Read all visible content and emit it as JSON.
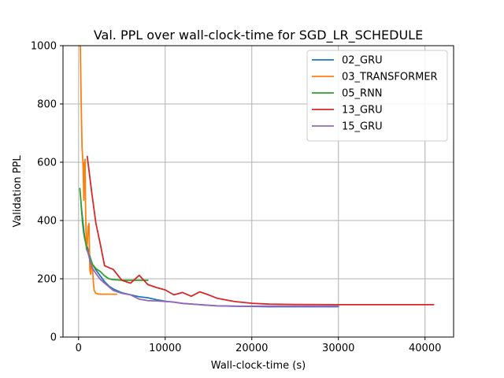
{
  "chart_data": {
    "type": "line",
    "title": "Val. PPL over wall-clock-time for SGD_LR_SCHEDULE",
    "xlabel": "Wall-clock-time (s)",
    "ylabel": "Validation PPL",
    "xlim": [
      -1800,
      43300
    ],
    "ylim": [
      0,
      1000
    ],
    "xticks": [
      0,
      10000,
      20000,
      30000,
      40000
    ],
    "xtick_labels": [
      "0",
      "10000",
      "20000",
      "30000",
      "40000"
    ],
    "yticks": [
      0,
      200,
      400,
      600,
      800,
      1000
    ],
    "ytick_labels": [
      "0",
      "200",
      "400",
      "600",
      "800",
      "1000"
    ],
    "grid": true,
    "legend_position": "top-right",
    "series": [
      {
        "name": "02_GRU",
        "color": "#1f77b4",
        "x": [
          300,
          700,
          1100,
          1500,
          2000,
          2500,
          3000,
          3500,
          4000,
          5000,
          6000,
          7000,
          8000,
          9000,
          10000,
          11000,
          12000,
          14000,
          16000,
          18000,
          20000,
          22000,
          24000,
          26000,
          28000,
          30000
        ],
        "y": [
          450,
          340,
          300,
          255,
          230,
          210,
          190,
          175,
          165,
          152,
          145,
          138,
          135,
          128,
          123,
          120,
          115,
          111,
          107,
          106,
          105,
          104,
          104,
          104,
          104,
          104
        ]
      },
      {
        "name": "03_TRANSFORMER",
        "color": "#ff7f0e",
        "x": [
          100,
          200,
          300,
          400,
          500,
          550,
          600,
          650,
          700,
          750,
          800,
          900,
          1000,
          1100,
          1200,
          1300,
          1400,
          1500,
          1600,
          1700,
          1800,
          2000,
          2200,
          2500,
          3000,
          3500,
          4000,
          4400
        ],
        "y": [
          1000,
          1000,
          800,
          650,
          600,
          560,
          470,
          600,
          530,
          610,
          450,
          300,
          320,
          380,
          390,
          230,
          215,
          260,
          240,
          190,
          160,
          150,
          148,
          147,
          147,
          147,
          147,
          147
        ]
      },
      {
        "name": "05_RNN",
        "color": "#2ca02c",
        "x": [
          150,
          300,
          450,
          600,
          800,
          1000,
          1300,
          1600,
          2000,
          2500,
          3000,
          3500,
          4000,
          5000,
          6000,
          7000,
          8000
        ],
        "y": [
          510,
          455,
          395,
          355,
          325,
          295,
          275,
          250,
          235,
          225,
          210,
          200,
          197,
          195,
          195,
          195,
          195
        ]
      },
      {
        "name": "13_GRU",
        "color": "#d62728",
        "x": [
          1000,
          1500,
          2000,
          2500,
          3000,
          4000,
          5000,
          6000,
          7000,
          8000,
          9000,
          10000,
          11000,
          12000,
          13000,
          14000,
          15000,
          16000,
          18000,
          20000,
          22000,
          25000,
          30000,
          35000,
          41000
        ],
        "y": [
          620,
          500,
          390,
          320,
          245,
          232,
          195,
          185,
          212,
          180,
          170,
          162,
          145,
          153,
          140,
          155,
          145,
          133,
          122,
          116,
          113,
          112,
          111,
          111,
          111
        ]
      },
      {
        "name": "15_GRU",
        "color": "#9467bd",
        "x": [
          1000,
          1500,
          2000,
          2500,
          3000,
          4000,
          5000,
          6000,
          7000,
          8000,
          9000,
          10000,
          11000,
          12000,
          14000,
          16000,
          18000,
          20000,
          25000,
          30000
        ],
        "y": [
          300,
          240,
          218,
          198,
          185,
          160,
          150,
          145,
          130,
          125,
          124,
          122,
          120,
          116,
          111,
          107,
          106,
          106,
          106,
          106
        ]
      }
    ]
  }
}
